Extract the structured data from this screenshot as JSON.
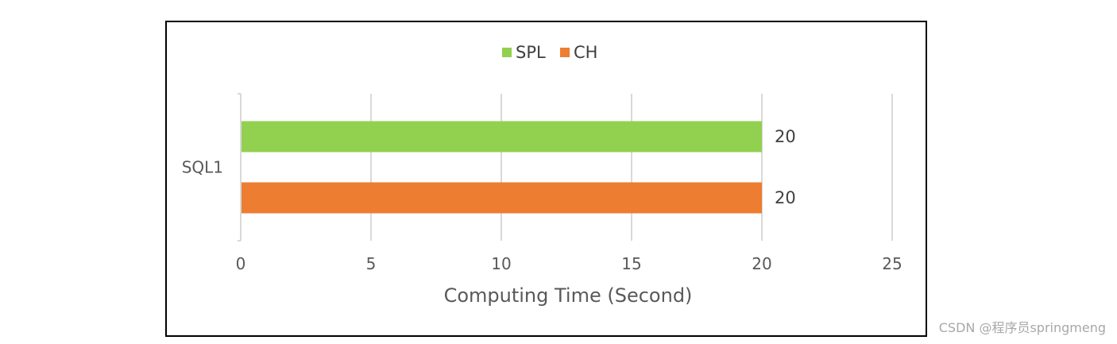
{
  "chart_data": {
    "type": "bar",
    "orientation": "horizontal",
    "categories": [
      "SQL1"
    ],
    "series": [
      {
        "name": "SPL",
        "color": "#92d050",
        "values": [
          20
        ]
      },
      {
        "name": "CH",
        "color": "#ed7d31",
        "values": [
          20
        ]
      }
    ],
    "xlabel": "Computing Time (Second)",
    "ylabel": "",
    "xlim": [
      0,
      25
    ],
    "xticks": [
      0,
      5,
      10,
      15,
      20,
      25
    ],
    "grid": true,
    "legend_position": "top",
    "data_labels": true
  },
  "watermark": "CSDN @程序员springmeng"
}
